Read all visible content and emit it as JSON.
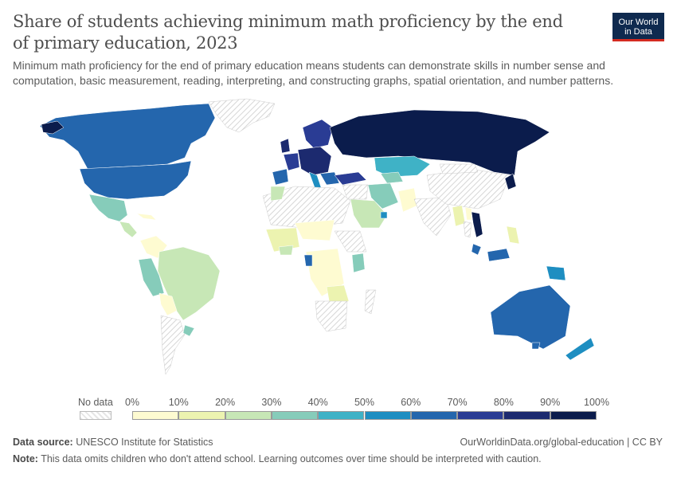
{
  "header": {
    "title": "Share of students achieving minimum math proficiency by the end of primary education, 2023",
    "subtitle": "Minimum math proficiency for the end of primary education means students can demonstrate skills in number sense and computation, basic measurement, reading, interpreting, and constructing graphs, spatial orientation, and number patterns.",
    "logo_line1": "Our World",
    "logo_line2": "in Data"
  },
  "legend": {
    "no_data_label": "No data",
    "ticks": [
      "0%",
      "10%",
      "20%",
      "30%",
      "40%",
      "50%",
      "60%",
      "70%",
      "80%",
      "90%",
      "100%"
    ],
    "colors": [
      "#fefbd1",
      "#ecf3b0",
      "#c7e7b6",
      "#86ccba",
      "#3fb2c6",
      "#1e8ec1",
      "#2466ad",
      "#2a3c94",
      "#1c2a6f",
      "#0b1c4c"
    ],
    "no_data_color": "#e6e6e6"
  },
  "footer": {
    "source_label": "Data source:",
    "source_text": "UNESCO Institute for Statistics",
    "url": "OurWorldinData.org/global-education | CC BY",
    "note_label": "Note:",
    "note_text": "This data omits children who don't attend school. Learning outcomes over time should be interpreted with caution."
  }
}
